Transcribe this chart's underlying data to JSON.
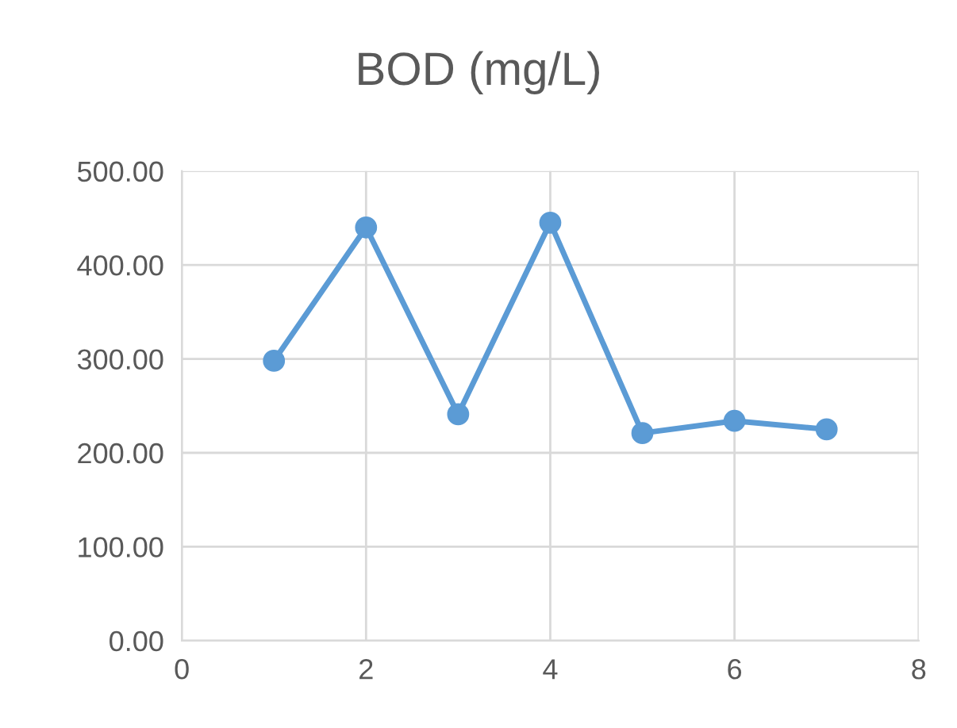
{
  "chart_data": {
    "type": "line",
    "title": "BOD (mg/L)",
    "x": [
      1,
      2,
      3,
      4,
      5,
      6,
      7
    ],
    "series": [
      {
        "color": "#5b9bd5",
        "values": [
          298,
          440,
          241,
          445,
          221,
          234,
          225
        ]
      }
    ],
    "marker": "circle",
    "line_style": "solid",
    "xlim": [
      0,
      8
    ],
    "xticks": [
      0,
      2,
      4,
      6,
      8
    ],
    "ylim": [
      0,
      500
    ],
    "yticks": [
      {
        "value": 0,
        "label": "0.00"
      },
      {
        "value": 100,
        "label": "100.00"
      },
      {
        "value": 200,
        "label": "200.00"
      },
      {
        "value": 300,
        "label": "300.00"
      },
      {
        "value": 400,
        "label": "400.00"
      },
      {
        "value": 500,
        "label": "500.00"
      }
    ],
    "grid": true,
    "legend": false
  }
}
